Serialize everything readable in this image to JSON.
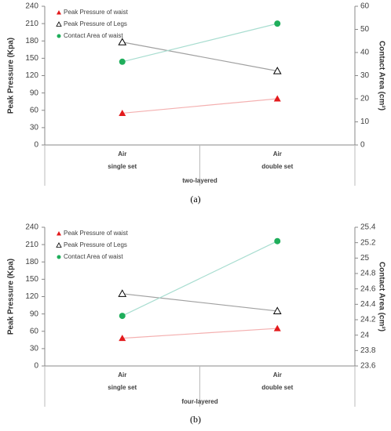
{
  "chart_data": [
    {
      "type": "line",
      "categories": [
        "Air",
        "Air"
      ],
      "groups": [
        "single set",
        "double set"
      ],
      "group_label": "two-layered",
      "ylabel": "Peak Pressure (Kpa)",
      "y2label": "Contact Area (cm²)",
      "ylim": [
        0,
        240
      ],
      "yticks": [
        0,
        30,
        60,
        90,
        120,
        150,
        180,
        210,
        240
      ],
      "y2lim": [
        0,
        60
      ],
      "y2ticks": [
        0,
        10,
        20,
        30,
        40,
        50,
        60
      ],
      "series": [
        {
          "name": "Peak Pressure of waist",
          "color": "#e31a1c",
          "line_color": "#f4b0b0",
          "marker": "triangle",
          "values": [
            55,
            80
          ]
        },
        {
          "name": "Peak Pressure of Legs",
          "color": "#000000",
          "line_color": "#a0a0a0",
          "marker": "triangle-open",
          "values": [
            178,
            128
          ]
        },
        {
          "name": "Contact Area of waist",
          "color": "#1fae5b",
          "line_color": "#a8ddd0",
          "marker": "circle",
          "axis": "y2",
          "values": [
            36,
            52.5
          ]
        }
      ],
      "caption": "(a)"
    },
    {
      "type": "line",
      "categories": [
        "Air",
        "Air"
      ],
      "groups": [
        "single set",
        "double set"
      ],
      "group_label": "four-layered",
      "ylabel": "Peak Pressure (Kpa)",
      "y2label": "Contact Area (cm²)",
      "ylim": [
        0,
        240
      ],
      "yticks": [
        0,
        30,
        60,
        90,
        120,
        150,
        180,
        210,
        240
      ],
      "y2lim": [
        23.6,
        25.4
      ],
      "y2ticks": [
        23.6,
        23.8,
        24,
        24.2,
        24.4,
        24.6,
        24.8,
        25,
        25.2,
        25.4
      ],
      "series": [
        {
          "name": "Peak Pressure of waist",
          "color": "#e31a1c",
          "line_color": "#f4b0b0",
          "marker": "triangle",
          "values": [
            48,
            65
          ]
        },
        {
          "name": "Peak Pressure of Legs",
          "color": "#000000",
          "line_color": "#a0a0a0",
          "marker": "triangle-open",
          "values": [
            125,
            95
          ]
        },
        {
          "name": "Contact Area of waist",
          "color": "#1fae5b",
          "line_color": "#a8ddd0",
          "marker": "circle",
          "axis": "y2",
          "values": [
            24.25,
            25.22
          ]
        }
      ],
      "caption": "(b)"
    }
  ]
}
